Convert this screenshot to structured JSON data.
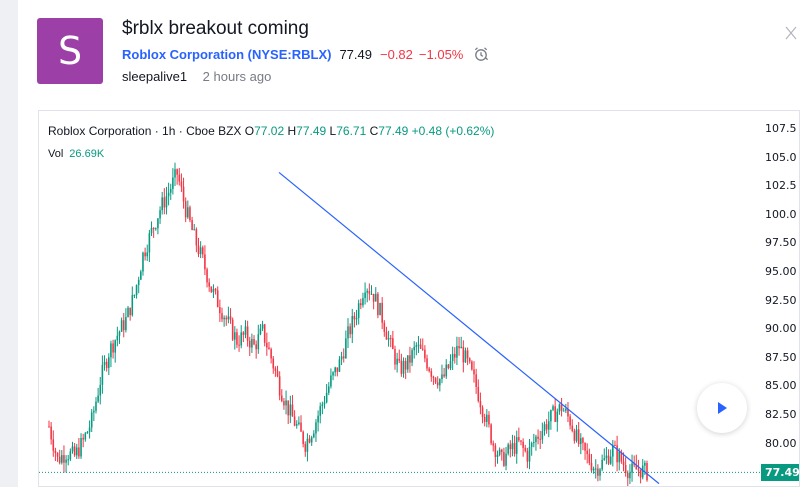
{
  "idea": {
    "avatar_letter": "S",
    "title": "$rblx breakout coming",
    "company": "Roblox Corporation",
    "symbol": "(NYSE:RBLX)",
    "last_price": "77.49",
    "change": "−0.82",
    "change_percent": "−1.05%",
    "author": "sleepalive1",
    "time_ago": "2 hours ago"
  },
  "chart_legend": {
    "instrument": "Roblox Corporation · 1h · Cboe BZX",
    "o_label": "O",
    "o_value": "77.02",
    "h_label": "H",
    "h_value": "77.49",
    "l_label": "L",
    "l_value": "76.71",
    "c_label": "C",
    "c_value": "77.49",
    "change": "+0.48 (+0.62%)",
    "vol_label": "Vol",
    "vol_value": "26.69K"
  },
  "price_axis": [
    "107.5",
    "105.0",
    "102.5",
    "100.0",
    "97.50",
    "95.00",
    "92.50",
    "90.00",
    "87.50",
    "85.00",
    "82.50",
    "80.00"
  ],
  "current_price_tag": "77.49",
  "colors": {
    "avatar": "#9c3fa6",
    "up": "#089981",
    "down": "#f23645",
    "trendline": "#2962ff",
    "symbol_link": "#2962ff"
  },
  "icons": {
    "alarm": "alarm-clock-icon",
    "play": "play-icon",
    "close": "close-icon"
  },
  "chart_data": {
    "type": "candlestick",
    "interval": "1h",
    "ylim": [
      76,
      108
    ],
    "close_path": [
      81.5,
      78.6,
      79.2,
      78.9,
      80.2,
      82.0,
      85.5,
      88.0,
      89.5,
      90.8,
      93.0,
      96.5,
      98.5,
      100.5,
      102.0,
      103.6,
      100.5,
      98.0,
      96.0,
      93.5,
      92.0,
      90.5,
      89.0,
      89.5,
      88.5,
      89.8,
      87.5,
      85.0,
      83.0,
      81.5,
      80.0,
      81.5,
      83.5,
      85.5,
      87.0,
      89.5,
      91.5,
      94.0,
      93.0,
      91.0,
      88.5,
      86.5,
      87.0,
      88.5,
      87.5,
      86.0,
      85.5,
      87.0,
      88.5,
      87.0,
      85.0,
      82.5,
      80.0,
      78.5,
      79.5,
      80.0,
      79.0,
      80.5,
      81.5,
      82.5,
      83.2,
      82.0,
      80.0,
      78.8,
      77.8,
      78.5,
      79.5,
      78.5,
      77.5,
      77.8,
      77.49
    ],
    "trendline": {
      "start_price": 103.7,
      "end_price": 76.5
    },
    "last_price": 77.49
  }
}
